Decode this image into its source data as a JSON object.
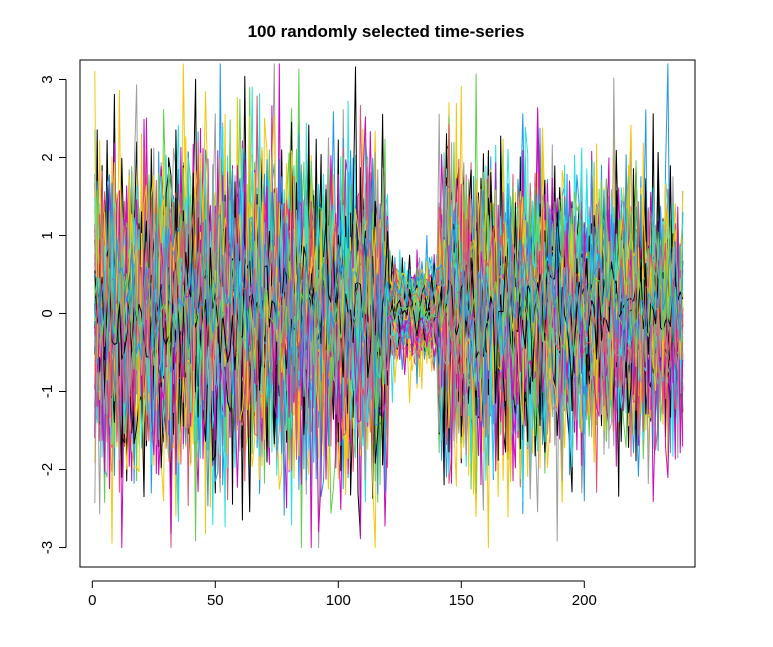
{
  "chart_data": {
    "type": "line",
    "title": "100 randomly selected time-series",
    "xlabel": "",
    "ylabel": "",
    "n_series": 100,
    "n_points": 240,
    "xlim": [
      -5,
      245
    ],
    "ylim": [
      -3.25,
      3.25
    ],
    "x_ticks": [
      0,
      50,
      100,
      150,
      200
    ],
    "y_ticks": [
      -3,
      -2,
      -1,
      0,
      1,
      2,
      3
    ],
    "grid": false,
    "legend": "none",
    "palette": [
      "#000000",
      "#DF536B",
      "#61D04F",
      "#2297E6",
      "#28E2E5",
      "#CD0BBC",
      "#F5C710",
      "#9E9E9E"
    ],
    "regime_pattern": {
      "description_of_visible_structure": "high-variance segments separated by low-variance segments",
      "segments": [
        {
          "from": 0,
          "to": 120,
          "spread": "high"
        },
        {
          "from": 120,
          "to": 140,
          "spread": "low"
        },
        {
          "from": 140,
          "to": 190,
          "spread": "high"
        },
        {
          "from": 190,
          "to": 240,
          "spread": "mixed"
        }
      ]
    }
  }
}
